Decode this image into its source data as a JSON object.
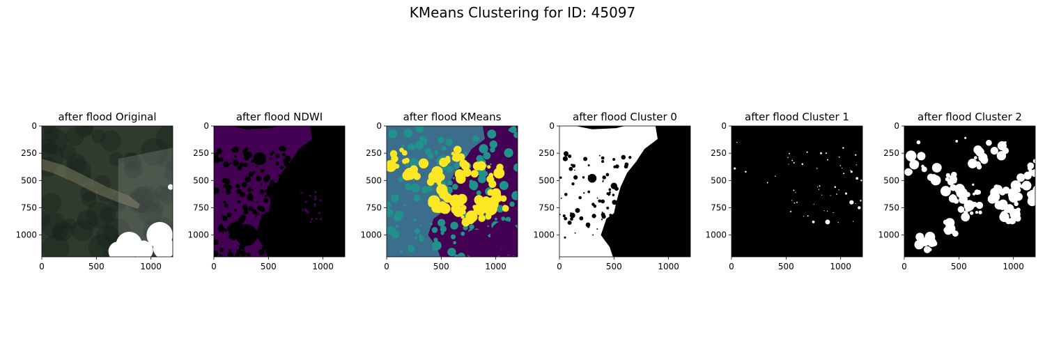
{
  "figure": {
    "title": "KMeans Clustering for ID: 45097"
  },
  "chart_data": [
    {
      "type": "image",
      "title": "after flood Original",
      "render": "rgb",
      "xlim": [
        0,
        1200
      ],
      "ylim": [
        1200,
        0
      ],
      "xticks": [
        0,
        500,
        1000
      ],
      "yticks": [
        0,
        250,
        500,
        750,
        1000
      ],
      "colors": {
        "background": "#2e3b2d",
        "cloud": "#ffffff"
      }
    },
    {
      "type": "image",
      "title": "after flood NDWI",
      "render": "ndwi",
      "xlim": [
        0,
        1200
      ],
      "ylim": [
        1200,
        0
      ],
      "xticks": [
        0,
        500,
        1000
      ],
      "yticks": [
        0,
        250,
        500,
        750,
        1000
      ],
      "colors": {
        "low": "#000000",
        "high": "#440154"
      }
    },
    {
      "type": "image",
      "title": "after flood KMeans",
      "render": "kmeans",
      "xlim": [
        0,
        1200
      ],
      "ylim": [
        1200,
        0
      ],
      "xticks": [
        0,
        500,
        1000
      ],
      "yticks": [
        0,
        250,
        500,
        750,
        1000
      ],
      "colors": {
        "cluster0": "#440154",
        "cluster1": "#21918c",
        "cluster2": "#fde725",
        "base": "#3b6d8c"
      }
    },
    {
      "type": "image",
      "title": "after flood Cluster 0",
      "render": "mask0",
      "xlim": [
        0,
        1200
      ],
      "ylim": [
        1200,
        0
      ],
      "xticks": [
        0,
        500,
        1000
      ],
      "yticks": [
        0,
        250,
        500,
        750,
        1000
      ],
      "colors": {
        "on": "#ffffff",
        "off": "#000000"
      }
    },
    {
      "type": "image",
      "title": "after flood Cluster 1",
      "render": "mask1",
      "xlim": [
        0,
        1200
      ],
      "ylim": [
        1200,
        0
      ],
      "xticks": [
        0,
        500,
        1000
      ],
      "yticks": [
        0,
        250,
        500,
        750,
        1000
      ],
      "colors": {
        "on": "#ffffff",
        "off": "#000000"
      }
    },
    {
      "type": "image",
      "title": "after flood Cluster 2",
      "render": "mask2",
      "xlim": [
        0,
        1200
      ],
      "ylim": [
        1200,
        0
      ],
      "xticks": [
        0,
        500,
        1000
      ],
      "yticks": [
        0,
        250,
        500,
        750,
        1000
      ],
      "colors": {
        "on": "#ffffff",
        "off": "#000000"
      }
    }
  ]
}
